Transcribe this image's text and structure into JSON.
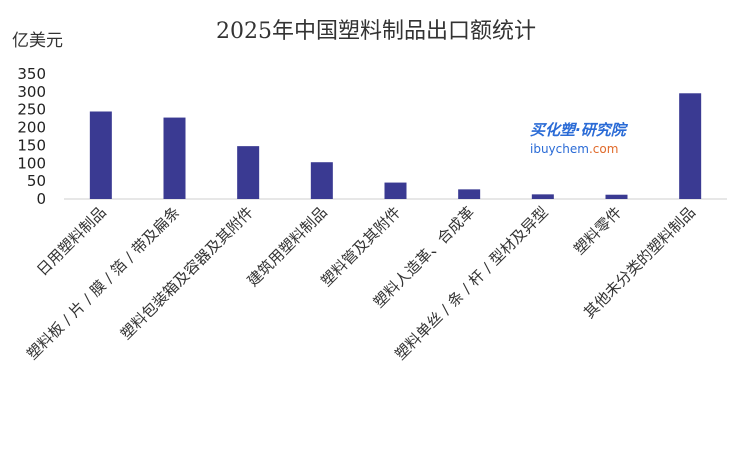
{
  "chart_data": {
    "type": "bar",
    "title": "2025年中国塑料制品出口额统计",
    "ylabel": "亿美元",
    "xlabel": "",
    "ylim": [
      0,
      350
    ],
    "yticks": [
      0,
      50,
      100,
      150,
      200,
      250,
      300,
      350
    ],
    "grid": false,
    "bar_color": "#3a3a92",
    "categories": [
      "日用塑料制品",
      "塑料板 / 片 / 膜 / 箔 / 带及扁条",
      "塑料包装箱及容器及其附件",
      "建筑用塑料制品",
      "塑料管及其附件",
      "塑料人造革、合成革",
      "塑料单丝 / 条 / 杆 / 型材及异型",
      "塑料零件",
      "其他未分类的塑料制品"
    ],
    "values": [
      245,
      228,
      148,
      103,
      46,
      27,
      13,
      12,
      296
    ]
  },
  "watermark": {
    "brand": "买化塑·研究院",
    "site_main": "ibuychem",
    "site_suffix": ".com"
  }
}
